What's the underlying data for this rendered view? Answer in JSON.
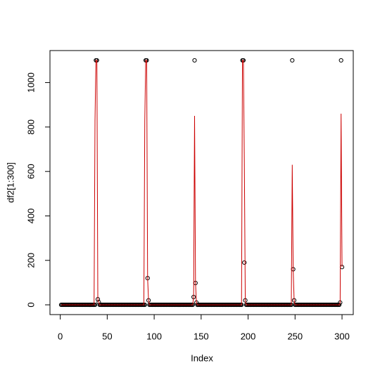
{
  "chart_data": {
    "type": "line",
    "xlabel": "Index",
    "ylabel": "df2[1:300]",
    "xlim": [
      -10.96,
      311.96
    ],
    "ylim": [
      -44,
      1144
    ],
    "xticks": [
      0,
      50,
      100,
      150,
      200,
      250,
      300
    ],
    "yticks": [
      0,
      200,
      400,
      600,
      800,
      1000
    ],
    "x": [
      1,
      2,
      3,
      4,
      5,
      6,
      7,
      8,
      9,
      10,
      11,
      12,
      13,
      14,
      15,
      16,
      17,
      18,
      19,
      20,
      21,
      22,
      23,
      24,
      25,
      26,
      27,
      28,
      29,
      30,
      31,
      32,
      33,
      34,
      35,
      36,
      37,
      38,
      39,
      40,
      41,
      42,
      43,
      44,
      45,
      46,
      47,
      48,
      49,
      50,
      51,
      52,
      53,
      54,
      55,
      56,
      57,
      58,
      59,
      60,
      61,
      62,
      63,
      64,
      65,
      66,
      67,
      68,
      69,
      70,
      71,
      72,
      73,
      74,
      75,
      76,
      77,
      78,
      79,
      80,
      81,
      82,
      83,
      84,
      85,
      86,
      87,
      88,
      89,
      90,
      91,
      92,
      93,
      94,
      95,
      96,
      97,
      98,
      99,
      100,
      101,
      102,
      103,
      104,
      105,
      106,
      107,
      108,
      109,
      110,
      111,
      112,
      113,
      114,
      115,
      116,
      117,
      118,
      119,
      120,
      121,
      122,
      123,
      124,
      125,
      126,
      127,
      128,
      129,
      130,
      131,
      132,
      133,
      134,
      135,
      136,
      137,
      138,
      139,
      140,
      141,
      142,
      143,
      144,
      145,
      146,
      147,
      148,
      149,
      150,
      151,
      152,
      153,
      154,
      155,
      156,
      157,
      158,
      159,
      160,
      161,
      162,
      163,
      164,
      165,
      166,
      167,
      168,
      169,
      170,
      171,
      172,
      173,
      174,
      175,
      176,
      177,
      178,
      179,
      180,
      181,
      182,
      183,
      184,
      185,
      186,
      187,
      188,
      189,
      190,
      191,
      192,
      193,
      194,
      195,
      196,
      197,
      198,
      199,
      200,
      201,
      202,
      203,
      204,
      205,
      206,
      207,
      208,
      209,
      210,
      211,
      212,
      213,
      214,
      215,
      216,
      217,
      218,
      219,
      220,
      221,
      222,
      223,
      224,
      225,
      226,
      227,
      228,
      229,
      230,
      231,
      232,
      233,
      234,
      235,
      236,
      237,
      238,
      239,
      240,
      241,
      242,
      243,
      244,
      245,
      246,
      247,
      248,
      249,
      250,
      251,
      252,
      253,
      254,
      255,
      256,
      257,
      258,
      259,
      260,
      261,
      262,
      263,
      264,
      265,
      266,
      267,
      268,
      269,
      270,
      271,
      272,
      273,
      274,
      275,
      276,
      277,
      278,
      279,
      280,
      281,
      282,
      283,
      284,
      285,
      286,
      287,
      288,
      289,
      290,
      291,
      292,
      293,
      294,
      295,
      296,
      297,
      298,
      299,
      300
    ],
    "series": [
      {
        "color": "#000000",
        "style": "points",
        "values": [
          0,
          0,
          0,
          0,
          0,
          0,
          0,
          0,
          0,
          0,
          0,
          0,
          0,
          0,
          0,
          0,
          0,
          0,
          0,
          0,
          0,
          0,
          0,
          0,
          0,
          0,
          0,
          0,
          0,
          0,
          0,
          0,
          0,
          0,
          0,
          0,
          0,
          1100,
          1100,
          25,
          12,
          0,
          0,
          0,
          0,
          0,
          0,
          0,
          0,
          0,
          0,
          0,
          0,
          0,
          0,
          0,
          0,
          0,
          0,
          0,
          0,
          0,
          0,
          0,
          0,
          0,
          0,
          0,
          0,
          0,
          0,
          0,
          0,
          0,
          0,
          0,
          0,
          0,
          0,
          0,
          0,
          0,
          0,
          0,
          0,
          0,
          0,
          0,
          0,
          0,
          1100,
          1100,
          120,
          20,
          0,
          0,
          0,
          0,
          0,
          0,
          0,
          0,
          0,
          0,
          0,
          0,
          0,
          0,
          0,
          0,
          0,
          0,
          0,
          0,
          0,
          0,
          0,
          0,
          0,
          0,
          0,
          0,
          0,
          0,
          0,
          0,
          0,
          0,
          0,
          0,
          0,
          0,
          0,
          0,
          0,
          0,
          0,
          0,
          0,
          0,
          0,
          35,
          1100,
          98,
          10,
          0,
          0,
          0,
          0,
          0,
          0,
          0,
          0,
          0,
          0,
          0,
          0,
          0,
          0,
          0,
          0,
          0,
          0,
          0,
          0,
          0,
          0,
          0,
          0,
          0,
          0,
          0,
          0,
          0,
          0,
          0,
          0,
          0,
          0,
          0,
          0,
          0,
          0,
          0,
          0,
          0,
          0,
          0,
          0,
          0,
          0,
          0,
          0,
          1100,
          1100,
          190,
          20,
          0,
          0,
          0,
          0,
          0,
          0,
          0,
          0,
          0,
          0,
          0,
          0,
          0,
          0,
          0,
          0,
          0,
          0,
          0,
          0,
          0,
          0,
          0,
          0,
          0,
          0,
          0,
          0,
          0,
          0,
          0,
          0,
          0,
          0,
          0,
          0,
          0,
          0,
          0,
          0,
          0,
          0,
          0,
          0,
          0,
          0,
          0,
          0,
          0,
          1100,
          160,
          20,
          0,
          0,
          0,
          0,
          0,
          0,
          0,
          0,
          0,
          0,
          0,
          0,
          0,
          0,
          0,
          0,
          0,
          0,
          0,
          0,
          0,
          0,
          0,
          0,
          0,
          0,
          0,
          0,
          0,
          0,
          0,
          0,
          0,
          0,
          0,
          0,
          0,
          0,
          0,
          0,
          0,
          0,
          0,
          0,
          0,
          0,
          0,
          0,
          10,
          1100,
          170
        ]
      },
      {
        "color": "#cc0000",
        "style": "line",
        "values": [
          0,
          0,
          0,
          0,
          0,
          0,
          0,
          0,
          0,
          0,
          0,
          0,
          0,
          0,
          0,
          0,
          0,
          0,
          0,
          0,
          0,
          0,
          0,
          0,
          0,
          0,
          0,
          0,
          0,
          0,
          0,
          0,
          0,
          0,
          0,
          0,
          830,
          1100,
          1100,
          25,
          12,
          0,
          0,
          0,
          0,
          0,
          0,
          0,
          0,
          0,
          0,
          0,
          0,
          0,
          0,
          0,
          0,
          0,
          0,
          0,
          0,
          0,
          0,
          0,
          0,
          0,
          0,
          0,
          0,
          0,
          0,
          0,
          0,
          0,
          0,
          0,
          0,
          0,
          0,
          0,
          0,
          0,
          0,
          0,
          0,
          0,
          0,
          0,
          0,
          830,
          1100,
          1100,
          120,
          20,
          0,
          0,
          0,
          0,
          0,
          0,
          0,
          0,
          0,
          0,
          0,
          0,
          0,
          0,
          0,
          0,
          0,
          0,
          0,
          0,
          0,
          0,
          0,
          0,
          0,
          0,
          0,
          0,
          0,
          0,
          0,
          0,
          0,
          0,
          0,
          0,
          0,
          0,
          0,
          0,
          0,
          0,
          0,
          0,
          0,
          0,
          0,
          35,
          850,
          98,
          10,
          0,
          0,
          0,
          0,
          0,
          0,
          0,
          0,
          0,
          0,
          0,
          0,
          0,
          0,
          0,
          0,
          0,
          0,
          0,
          0,
          0,
          0,
          0,
          0,
          0,
          0,
          0,
          0,
          0,
          0,
          0,
          0,
          0,
          0,
          0,
          0,
          0,
          0,
          0,
          0,
          0,
          0,
          0,
          0,
          0,
          0,
          0,
          0,
          1100,
          1100,
          640,
          20,
          0,
          0,
          0,
          0,
          0,
          0,
          0,
          0,
          0,
          0,
          0,
          0,
          0,
          0,
          0,
          0,
          0,
          0,
          0,
          0,
          0,
          0,
          0,
          0,
          0,
          0,
          0,
          0,
          0,
          0,
          0,
          0,
          0,
          0,
          0,
          0,
          0,
          0,
          0,
          0,
          0,
          0,
          0,
          0,
          0,
          0,
          0,
          0,
          0,
          630,
          160,
          20,
          0,
          0,
          0,
          0,
          0,
          0,
          0,
          0,
          0,
          0,
          0,
          0,
          0,
          0,
          0,
          0,
          0,
          0,
          0,
          0,
          0,
          0,
          0,
          0,
          0,
          0,
          0,
          0,
          0,
          0,
          0,
          0,
          0,
          0,
          0,
          0,
          0,
          0,
          0,
          0,
          0,
          0,
          0,
          0,
          0,
          0,
          0,
          0,
          10,
          860,
          170
        ]
      }
    ]
  }
}
